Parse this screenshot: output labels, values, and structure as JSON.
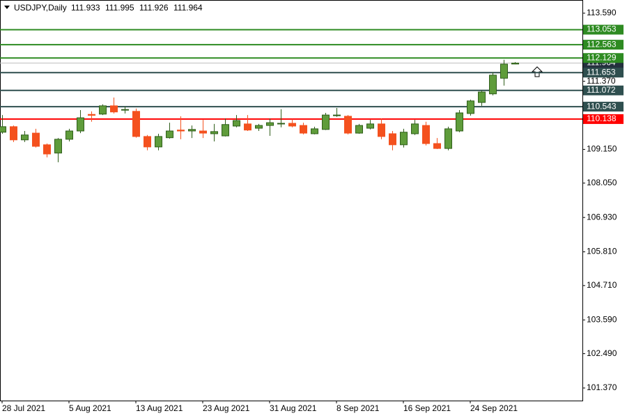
{
  "chart_data": {
    "type": "candlestick",
    "title": "USDJPY,Daily",
    "header_ohlc": [
      111.933,
      111.995,
      111.926,
      111.964
    ],
    "categories": [
      "28 Jul 2021",
      null,
      null,
      null,
      null,
      null,
      "5 Aug 2021",
      null,
      null,
      null,
      null,
      null,
      "13 Aug 2021",
      null,
      null,
      null,
      null,
      null,
      "23 Aug 2021",
      null,
      null,
      null,
      null,
      null,
      "31 Aug 2021",
      null,
      null,
      null,
      null,
      null,
      "8 Sep 2021",
      null,
      null,
      null,
      null,
      null,
      "16 Sep 2021",
      null,
      null,
      null,
      null,
      null,
      "24 Sep 2021",
      null,
      null,
      null,
      null
    ],
    "open": [
      109.71,
      109.89,
      109.46,
      109.68,
      109.3,
      109.03,
      109.48,
      109.75,
      110.29,
      110.3,
      110.57,
      110.43,
      110.39,
      109.57,
      109.23,
      109.53,
      109.78,
      109.75,
      109.75,
      109.66,
      109.59,
      109.91,
      109.98,
      109.84,
      109.93,
      109.98,
      110.0,
      109.93,
      109.66,
      109.8,
      110.25,
      110.23,
      109.68,
      109.84,
      109.98,
      109.66,
      109.3,
      109.66,
      109.93,
      109.34,
      109.18,
      109.75,
      110.32,
      110.68,
      110.96,
      111.47,
      111.933
    ],
    "high": [
      110.27,
      109.93,
      109.75,
      109.82,
      109.34,
      109.52,
      109.82,
      110.43,
      110.39,
      110.62,
      110.84,
      110.55,
      110.48,
      109.62,
      109.66,
      110.02,
      110.23,
      109.93,
      110.11,
      109.98,
      110.16,
      110.27,
      110.27,
      109.98,
      110.16,
      110.46,
      110.14,
      110.02,
      109.89,
      110.34,
      110.5,
      110.27,
      109.98,
      110.11,
      110.16,
      109.75,
      109.82,
      110.11,
      110.05,
      109.52,
      109.89,
      110.43,
      110.77,
      111.07,
      111.66,
      112.07,
      111.995
    ],
    "low": [
      109.66,
      109.39,
      109.39,
      109.21,
      108.89,
      108.73,
      109.41,
      109.68,
      110.05,
      110.27,
      110.32,
      110.32,
      109.53,
      109.12,
      109.12,
      109.5,
      109.48,
      109.52,
      109.52,
      109.41,
      109.57,
      109.87,
      109.75,
      109.75,
      109.59,
      109.87,
      109.87,
      109.64,
      109.64,
      109.78,
      110.21,
      109.64,
      109.66,
      109.8,
      109.48,
      109.12,
      109.21,
      109.62,
      109.28,
      109.16,
      109.12,
      109.71,
      110.25,
      110.57,
      110.91,
      111.23,
      111.926
    ],
    "close": [
      109.89,
      109.46,
      109.62,
      109.25,
      109.0,
      109.48,
      109.75,
      110.18,
      110.26,
      110.57,
      110.37,
      110.45,
      109.57,
      109.23,
      109.57,
      109.75,
      109.75,
      109.8,
      109.68,
      109.73,
      109.96,
      110.09,
      109.78,
      109.93,
      110.02,
      110.0,
      109.91,
      109.68,
      109.82,
      110.27,
      110.27,
      109.68,
      109.93,
      109.98,
      109.57,
      109.3,
      109.71,
      109.98,
      109.34,
      109.18,
      109.82,
      110.34,
      110.73,
      111.02,
      111.57,
      111.93,
      111.964
    ],
    "up_color": "#5f9c3b",
    "down_color": "#f4511e",
    "ylim": [
      100.96,
      114.02
    ],
    "yticks": [
      {
        "value": 113.59,
        "label": "113.590"
      },
      {
        "value": 111.37,
        "label": "111.370"
      },
      {
        "value": 109.15,
        "label": "109.150"
      },
      {
        "value": 108.05,
        "label": "108.050"
      },
      {
        "value": 106.93,
        "label": "106.930"
      },
      {
        "value": 105.81,
        "label": "105.810"
      },
      {
        "value": 104.71,
        "label": "104.710"
      },
      {
        "value": 103.59,
        "label": "103.590"
      },
      {
        "value": 102.49,
        "label": "102.490"
      },
      {
        "value": 101.37,
        "label": "101.370"
      }
    ],
    "last_price": {
      "value": 111.964,
      "color": "#24303e"
    },
    "levels": [
      {
        "value": 113.053,
        "color": "#2e8b22"
      },
      {
        "value": 112.563,
        "color": "#2e8b22"
      },
      {
        "value": 112.129,
        "color": "#2e8b22"
      },
      {
        "value": 111.653,
        "color": "#2f4f4f"
      },
      {
        "value": 111.072,
        "color": "#2f4f4f"
      },
      {
        "value": 110.543,
        "color": "#2f4f4f"
      },
      {
        "value": 110.138,
        "color": "#ff0000"
      }
    ]
  }
}
